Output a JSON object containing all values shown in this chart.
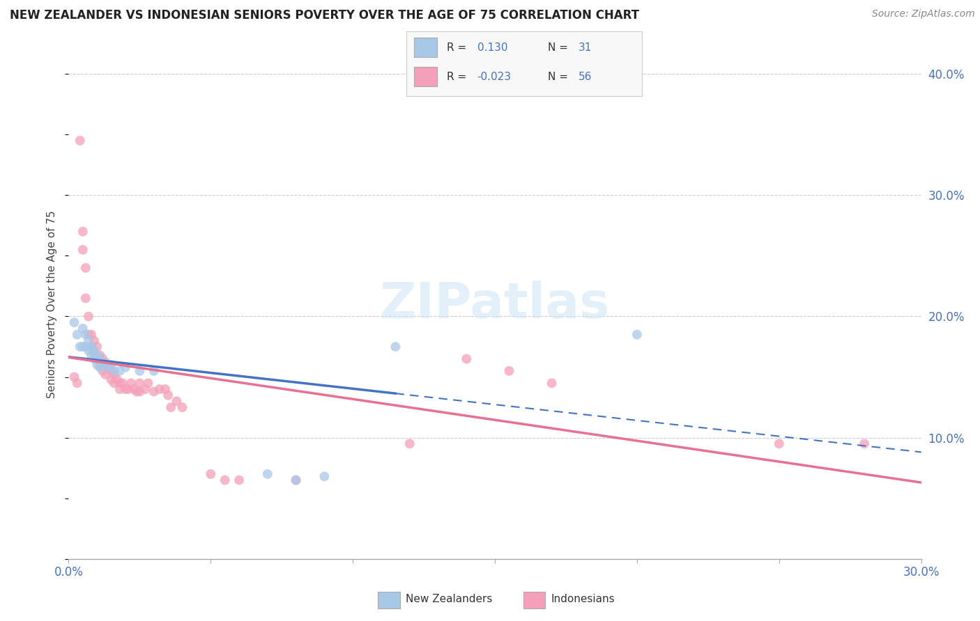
{
  "title": "NEW ZEALANDER VS INDONESIAN SENIORS POVERTY OVER THE AGE OF 75 CORRELATION CHART",
  "source": "Source: ZipAtlas.com",
  "ylabel": "Seniors Poverty Over the Age of 75",
  "xlim": [
    0.0,
    0.3
  ],
  "ylim": [
    0.0,
    0.42
  ],
  "xtick_vals": [
    0.0,
    0.05,
    0.1,
    0.15,
    0.2,
    0.25,
    0.3
  ],
  "xtick_labels_show": {
    "0.0": "0.0%",
    "0.30": "30.0%"
  },
  "yticks_right": [
    0.1,
    0.2,
    0.3,
    0.4
  ],
  "nz_R": 0.13,
  "nz_N": 31,
  "ind_R": -0.023,
  "ind_N": 56,
  "nz_color": "#a8c8e8",
  "ind_color": "#f4a0b8",
  "nz_line_color": "#4472C4",
  "ind_line_color": "#E87090",
  "text_color_blue": "#4472C4",
  "nz_scatter": [
    [
      0.002,
      0.195
    ],
    [
      0.003,
      0.185
    ],
    [
      0.004,
      0.175
    ],
    [
      0.005,
      0.19
    ],
    [
      0.005,
      0.175
    ],
    [
      0.006,
      0.185
    ],
    [
      0.006,
      0.175
    ],
    [
      0.007,
      0.18
    ],
    [
      0.007,
      0.172
    ],
    [
      0.008,
      0.175
    ],
    [
      0.008,
      0.168
    ],
    [
      0.009,
      0.172
    ],
    [
      0.009,
      0.165
    ],
    [
      0.01,
      0.168
    ],
    [
      0.01,
      0.16
    ],
    [
      0.011,
      0.165
    ],
    [
      0.011,
      0.158
    ],
    [
      0.012,
      0.162
    ],
    [
      0.013,
      0.16
    ],
    [
      0.014,
      0.158
    ],
    [
      0.015,
      0.16
    ],
    [
      0.016,
      0.155
    ],
    [
      0.018,
      0.155
    ],
    [
      0.02,
      0.158
    ],
    [
      0.025,
      0.155
    ],
    [
      0.03,
      0.155
    ],
    [
      0.07,
      0.07
    ],
    [
      0.08,
      0.065
    ],
    [
      0.09,
      0.068
    ],
    [
      0.115,
      0.175
    ],
    [
      0.2,
      0.185
    ]
  ],
  "ind_scatter": [
    [
      0.002,
      0.15
    ],
    [
      0.003,
      0.145
    ],
    [
      0.004,
      0.345
    ],
    [
      0.005,
      0.27
    ],
    [
      0.005,
      0.255
    ],
    [
      0.006,
      0.24
    ],
    [
      0.006,
      0.215
    ],
    [
      0.007,
      0.2
    ],
    [
      0.007,
      0.185
    ],
    [
      0.008,
      0.185
    ],
    [
      0.008,
      0.175
    ],
    [
      0.009,
      0.18
    ],
    [
      0.009,
      0.17
    ],
    [
      0.01,
      0.175
    ],
    [
      0.01,
      0.165
    ],
    [
      0.011,
      0.168
    ],
    [
      0.011,
      0.16
    ],
    [
      0.012,
      0.165
    ],
    [
      0.012,
      0.155
    ],
    [
      0.013,
      0.162
    ],
    [
      0.013,
      0.152
    ],
    [
      0.014,
      0.158
    ],
    [
      0.015,
      0.155
    ],
    [
      0.015,
      0.148
    ],
    [
      0.016,
      0.152
    ],
    [
      0.016,
      0.145
    ],
    [
      0.017,
      0.148
    ],
    [
      0.018,
      0.145
    ],
    [
      0.018,
      0.14
    ],
    [
      0.019,
      0.145
    ],
    [
      0.02,
      0.14
    ],
    [
      0.021,
      0.14
    ],
    [
      0.022,
      0.145
    ],
    [
      0.023,
      0.14
    ],
    [
      0.024,
      0.138
    ],
    [
      0.025,
      0.145
    ],
    [
      0.025,
      0.138
    ],
    [
      0.027,
      0.14
    ],
    [
      0.028,
      0.145
    ],
    [
      0.03,
      0.138
    ],
    [
      0.032,
      0.14
    ],
    [
      0.034,
      0.14
    ],
    [
      0.035,
      0.135
    ],
    [
      0.036,
      0.125
    ],
    [
      0.038,
      0.13
    ],
    [
      0.04,
      0.125
    ],
    [
      0.05,
      0.07
    ],
    [
      0.055,
      0.065
    ],
    [
      0.06,
      0.065
    ],
    [
      0.08,
      0.065
    ],
    [
      0.12,
      0.095
    ],
    [
      0.14,
      0.165
    ],
    [
      0.155,
      0.155
    ],
    [
      0.17,
      0.145
    ],
    [
      0.25,
      0.095
    ],
    [
      0.28,
      0.095
    ]
  ]
}
